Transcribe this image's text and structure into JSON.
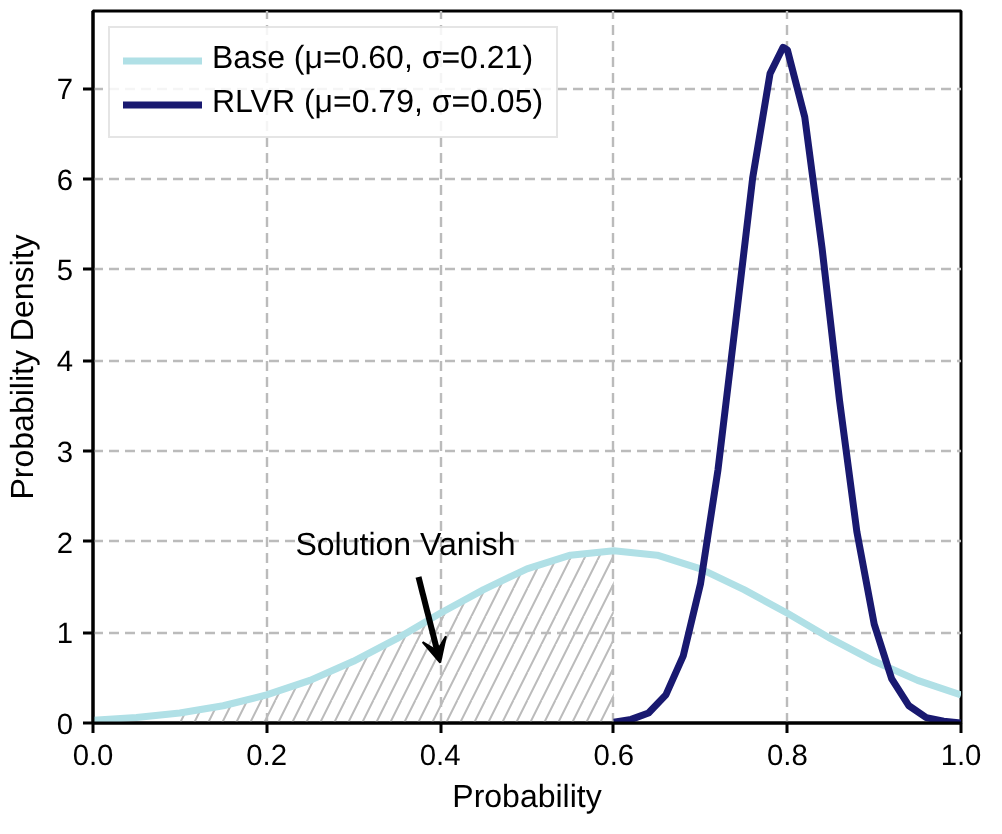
{
  "chart_data": {
    "type": "line",
    "xlabel": "Probability",
    "ylabel": "Probability Density",
    "xlim": [
      0.0,
      1.0
    ],
    "ylim": [
      0,
      7.85
    ],
    "xticks": [
      {
        "value": 0,
        "label": "0.0"
      },
      0.2,
      0.4,
      0.6,
      0.8,
      {
        "value": 1,
        "label": "1.0"
      }
    ],
    "yticks": [
      0,
      1,
      2,
      3,
      4,
      5,
      6,
      7
    ],
    "grid": true,
    "legend": "top left",
    "line_style": "solid",
    "marker": "none",
    "annotations": [
      "Solution Vanish"
    ],
    "series": [
      {
        "type": "area",
        "color": "#bbbbbb",
        "x": [
          0.1,
          0.15,
          0.2,
          0.25,
          0.3,
          0.35,
          0.4,
          0.45,
          0.5,
          0.55,
          0.6
        ],
        "values": [
          0.11,
          0.19,
          0.31,
          0.47,
          0.68,
          0.93,
          1.21,
          1.47,
          1.7,
          1.85,
          1.9
        ]
      },
      {
        "name": "Base (μ=0.60, σ=0.21)",
        "color": "#b0e0e6",
        "x": [
          0.0,
          0.05,
          0.1,
          0.15,
          0.2,
          0.25,
          0.3,
          0.35,
          0.4,
          0.45,
          0.5,
          0.55,
          0.6,
          0.65,
          0.7,
          0.75,
          0.8,
          0.85,
          0.9,
          0.95,
          1.0
        ],
        "values": [
          0.03,
          0.06,
          0.11,
          0.19,
          0.31,
          0.47,
          0.68,
          0.93,
          1.21,
          1.47,
          1.7,
          1.85,
          1.9,
          1.85,
          1.7,
          1.47,
          1.21,
          0.93,
          0.68,
          0.47,
          0.31
        ]
      },
      {
        "name": "RLVR (μ=0.79, σ=0.05)",
        "color": "#191970",
        "x": [
          0.6,
          0.62,
          0.64,
          0.66,
          0.68,
          0.7,
          0.72,
          0.74,
          0.76,
          0.78,
          0.795,
          0.8,
          0.82,
          0.84,
          0.86,
          0.88,
          0.9,
          0.92,
          0.94,
          0.96,
          0.98,
          1.0
        ],
        "values": [
          0.01,
          0.04,
          0.11,
          0.31,
          0.74,
          1.54,
          2.79,
          4.39,
          6.01,
          7.16,
          7.45,
          7.42,
          6.68,
          5.23,
          3.56,
          2.11,
          1.09,
          0.49,
          0.19,
          0.06,
          0.02,
          0.0
        ]
      }
    ]
  }
}
